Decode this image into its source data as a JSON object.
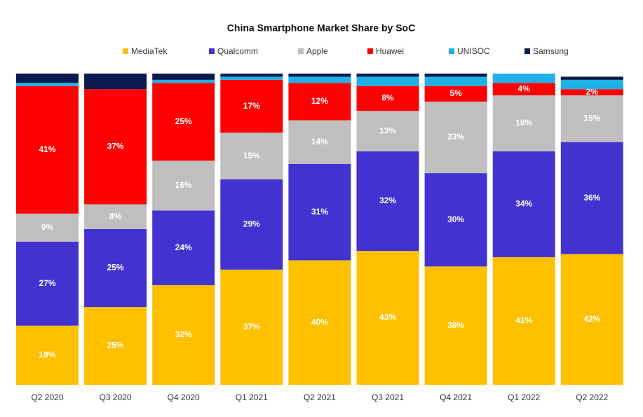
{
  "chart_data": {
    "type": "stacked_bar",
    "title": "China Smartphone Market Share by SoC",
    "categories": [
      "Q2 2020",
      "Q3 2020",
      "Q4 2020",
      "Q1 2021",
      "Q2 2021",
      "Q3 2021",
      "Q4 2021",
      "Q1 2022",
      "Q2 2022"
    ],
    "ylim": [
      0,
      100
    ],
    "series": [
      {
        "name": "MediaTek",
        "color": "#ffc000",
        "values": [
          19,
          25,
          32,
          37,
          40,
          43,
          38,
          41,
          42
        ],
        "value_labels": [
          "19%",
          "25%",
          "32%",
          "37%",
          "40%",
          "43%",
          "38%",
          "41%",
          "42%"
        ]
      },
      {
        "name": "Qualcomm",
        "color": "#4233d0",
        "values": [
          27,
          25,
          24,
          29,
          31,
          32,
          30,
          34,
          36
        ],
        "value_labels": [
          "27%",
          "25%",
          "24%",
          "29%",
          "31%",
          "32%",
          "30%",
          "34%",
          "36%"
        ]
      },
      {
        "name": "Apple",
        "color": "#bfbfbf",
        "values": [
          9,
          8,
          16,
          15,
          14,
          13,
          23,
          18,
          15
        ],
        "value_labels": [
          "9%",
          "8%",
          "16%",
          "15%",
          "14%",
          "13%",
          "23%",
          "18%",
          "15%"
        ]
      },
      {
        "name": "Huawei",
        "color": "#ff0000",
        "values": [
          41,
          37,
          25,
          17,
          12,
          8,
          5,
          4,
          2
        ],
        "value_labels": [
          "41%",
          "37%",
          "25%",
          "17%",
          "12%",
          "8%",
          "5%",
          "4%",
          "2%"
        ]
      },
      {
        "name": "UNISOC",
        "color": "#1fb0e8",
        "values": [
          1,
          0,
          1,
          1,
          2,
          3,
          3,
          3,
          3
        ]
      },
      {
        "name": "Samsung",
        "color": "#0b1a4f",
        "values": [
          3,
          5,
          2,
          1,
          1,
          1,
          1,
          0,
          1
        ]
      }
    ]
  }
}
